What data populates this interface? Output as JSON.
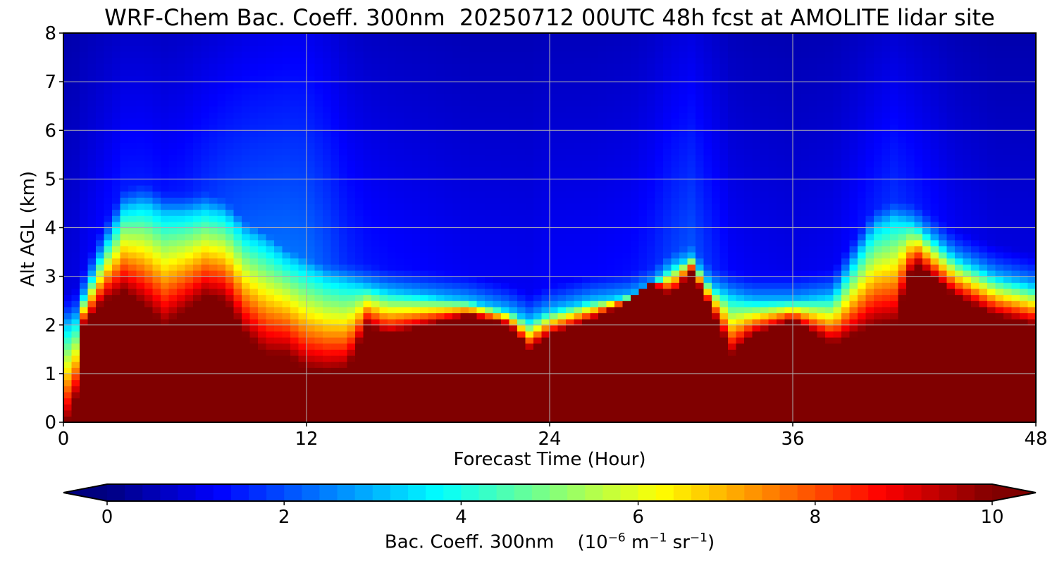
{
  "chart_data": {
    "type": "heatmap",
    "title": "WRF-Chem Bac. Coeff. 300nm  20250712 00UTC 48h fcst at AMOLITE lidar site",
    "xlabel": "Forecast Time (Hour)",
    "ylabel": "Alt AGL (km)",
    "xlim": [
      0,
      48
    ],
    "ylim": [
      0,
      8
    ],
    "xticks": [
      "0",
      "12",
      "24",
      "36",
      "48"
    ],
    "yticks": [
      "0",
      "1",
      "2",
      "3",
      "4",
      "5",
      "6",
      "7",
      "8"
    ],
    "grid": true,
    "colormap": "jet",
    "colorbar": {
      "label": "Bac. Coeff. 300nm",
      "units_label": "(10−6 m−1 sr−1)",
      "units_parts": [
        "(10",
        "−6",
        " m",
        "−1",
        " sr",
        "−1",
        ")"
      ],
      "range": [
        0,
        10
      ],
      "ticks": [
        "0",
        "2",
        "4",
        "6",
        "8",
        "10"
      ],
      "extend": "both",
      "orientation": "horizontal"
    },
    "x": [
      0,
      0.5,
      1,
      2,
      3,
      4,
      5,
      6,
      7,
      8,
      9,
      10,
      11,
      12,
      13,
      14,
      15,
      16,
      18,
      20,
      22,
      23,
      24,
      26,
      28,
      29,
      30,
      31,
      32,
      33,
      34,
      36,
      38,
      40,
      41,
      42,
      44,
      46,
      48
    ],
    "profiles": {
      "boundary_layer_top_km": [
        0,
        0.1,
        2.0,
        2.5,
        2.7,
        2.4,
        2.0,
        2.3,
        2.6,
        2.5,
        1.8,
        1.4,
        1.4,
        1.1,
        1.05,
        1.1,
        2.0,
        1.8,
        2.0,
        2.2,
        2.0,
        1.5,
        1.8,
        2.1,
        2.5,
        2.9,
        2.6,
        3.1,
        2.3,
        1.4,
        1.8,
        2.1,
        1.6,
        2.0,
        2.05,
        3.3,
        2.6,
        2.2,
        2.0
      ],
      "aerosol_layer_top_km": [
        2.0,
        2.0,
        2.6,
        3.6,
        4.4,
        4.5,
        4.3,
        4.3,
        4.4,
        4.3,
        3.9,
        3.7,
        3.4,
        3.2,
        3.0,
        2.9,
        2.8,
        2.7,
        2.6,
        2.5,
        2.3,
        2.1,
        2.3,
        2.5,
        2.6,
        2.8,
        3.2,
        3.4,
        2.8,
        2.6,
        2.5,
        2.5,
        2.6,
        4.0,
        4.2,
        4.1,
        3.4,
        3.0,
        2.8
      ],
      "free_tropospheric_value": [
        1.0,
        1.0,
        1.2,
        1.4,
        1.6,
        1.6,
        1.5,
        1.6,
        1.8,
        2.0,
        2.2,
        2.3,
        2.4,
        2.4,
        2.1,
        1.7,
        1.5,
        1.4,
        1.3,
        1.2,
        1.2,
        1.2,
        1.3,
        1.3,
        1.4,
        1.6,
        1.9,
        2.1,
        1.7,
        1.3,
        1.2,
        1.1,
        1.2,
        1.6,
        1.8,
        1.6,
        1.2,
        1.0,
        1.0
      ]
    },
    "surface_value_max": 10
  }
}
